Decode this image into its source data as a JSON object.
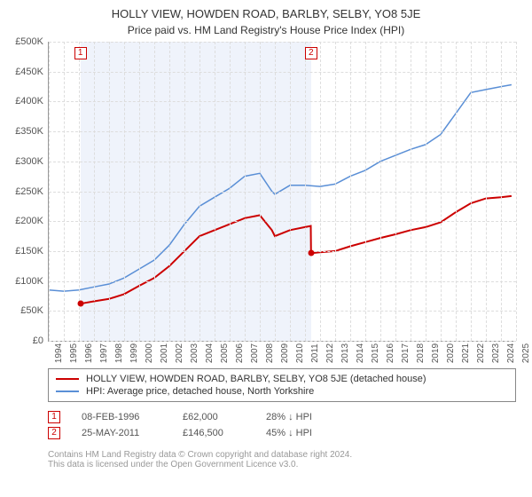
{
  "title": "HOLLY VIEW, HOWDEN ROAD, BARLBY, SELBY, YO8 5JE",
  "subtitle": "Price paid vs. HM Land Registry's House Price Index (HPI)",
  "chart": {
    "type": "line",
    "background_color": "#ffffff",
    "grid_color": "#dddddd",
    "axis_color": "#999999",
    "title_fontsize": 13,
    "label_fontsize": 11,
    "xtick_fontsize": 10,
    "x_years": [
      1994,
      1995,
      1996,
      1997,
      1998,
      1999,
      2000,
      2001,
      2002,
      2003,
      2004,
      2005,
      2006,
      2007,
      2008,
      2009,
      2010,
      2011,
      2012,
      2013,
      2014,
      2015,
      2016,
      2017,
      2018,
      2019,
      2020,
      2021,
      2022,
      2023,
      2024,
      2025
    ],
    "xlim": [
      1994,
      2025
    ],
    "ylim": [
      0,
      500000
    ],
    "ytick_step": 50000,
    "ytick_labels": [
      "£0",
      "£50K",
      "£100K",
      "£150K",
      "£200K",
      "£250K",
      "£300K",
      "£350K",
      "£400K",
      "£450K",
      "£500K"
    ],
    "highlight_band": {
      "from": 1996.1,
      "to": 2011.4,
      "color": "rgba(120,160,220,0.12)"
    },
    "series": [
      {
        "id": "price_paid",
        "label": "HOLLY VIEW, HOWDEN ROAD, BARLBY, SELBY, YO8 5JE (detached house)",
        "color": "#cc0000",
        "line_width": 2,
        "points": [
          [
            1996.1,
            62000
          ],
          [
            1997,
            66000
          ],
          [
            1998,
            70000
          ],
          [
            1999,
            78000
          ],
          [
            2000,
            92000
          ],
          [
            2001,
            105000
          ],
          [
            2002,
            125000
          ],
          [
            2003,
            150000
          ],
          [
            2004,
            175000
          ],
          [
            2005,
            185000
          ],
          [
            2006,
            195000
          ],
          [
            2007,
            205000
          ],
          [
            2008,
            210000
          ],
          [
            2008.8,
            185000
          ],
          [
            2009,
            175000
          ],
          [
            2010,
            185000
          ],
          [
            2011,
            190000
          ],
          [
            2011.38,
            192000
          ],
          [
            2011.4,
            146500
          ],
          [
            2012,
            148000
          ],
          [
            2013,
            150000
          ],
          [
            2014,
            158000
          ],
          [
            2015,
            165000
          ],
          [
            2016,
            172000
          ],
          [
            2017,
            178000
          ],
          [
            2018,
            185000
          ],
          [
            2019,
            190000
          ],
          [
            2020,
            198000
          ],
          [
            2021,
            215000
          ],
          [
            2022,
            230000
          ],
          [
            2023,
            238000
          ],
          [
            2024,
            240000
          ],
          [
            2024.7,
            242000
          ]
        ]
      },
      {
        "id": "hpi",
        "label": "HPI: Average price, detached house, North Yorkshire",
        "color": "#5a8fd6",
        "line_width": 1.5,
        "points": [
          [
            1994,
            85000
          ],
          [
            1995,
            83000
          ],
          [
            1996,
            85000
          ],
          [
            1997,
            90000
          ],
          [
            1998,
            95000
          ],
          [
            1999,
            105000
          ],
          [
            2000,
            120000
          ],
          [
            2001,
            135000
          ],
          [
            2002,
            160000
          ],
          [
            2003,
            195000
          ],
          [
            2004,
            225000
          ],
          [
            2005,
            240000
          ],
          [
            2006,
            255000
          ],
          [
            2007,
            275000
          ],
          [
            2008,
            280000
          ],
          [
            2008.8,
            250000
          ],
          [
            2009,
            245000
          ],
          [
            2010,
            260000
          ],
          [
            2011,
            260000
          ],
          [
            2012,
            258000
          ],
          [
            2013,
            262000
          ],
          [
            2014,
            275000
          ],
          [
            2015,
            285000
          ],
          [
            2016,
            300000
          ],
          [
            2017,
            310000
          ],
          [
            2018,
            320000
          ],
          [
            2019,
            328000
          ],
          [
            2020,
            345000
          ],
          [
            2021,
            380000
          ],
          [
            2022,
            415000
          ],
          [
            2023,
            420000
          ],
          [
            2024,
            425000
          ],
          [
            2024.7,
            428000
          ]
        ]
      }
    ],
    "markers": [
      {
        "n": 1,
        "x": 1996.1,
        "y": 62000,
        "color": "#cc0000"
      },
      {
        "n": 2,
        "x": 2011.4,
        "y": 146500,
        "color": "#cc0000"
      }
    ]
  },
  "legend": {
    "series1": {
      "color": "#cc0000",
      "label": "HOLLY VIEW, HOWDEN ROAD, BARLBY, SELBY, YO8 5JE (detached house)"
    },
    "series2": {
      "color": "#5a8fd6",
      "label": "HPI: Average price, detached house, North Yorkshire"
    }
  },
  "transactions": [
    {
      "n": 1,
      "color": "#cc0000",
      "date": "08-FEB-1996",
      "price": "£62,000",
      "delta": "28% ↓ HPI"
    },
    {
      "n": 2,
      "color": "#cc0000",
      "date": "25-MAY-2011",
      "price": "£146,500",
      "delta": "45% ↓ HPI"
    }
  ],
  "footer": {
    "line1": "Contains HM Land Registry data © Crown copyright and database right 2024.",
    "line2": "This data is licensed under the Open Government Licence v3.0."
  }
}
